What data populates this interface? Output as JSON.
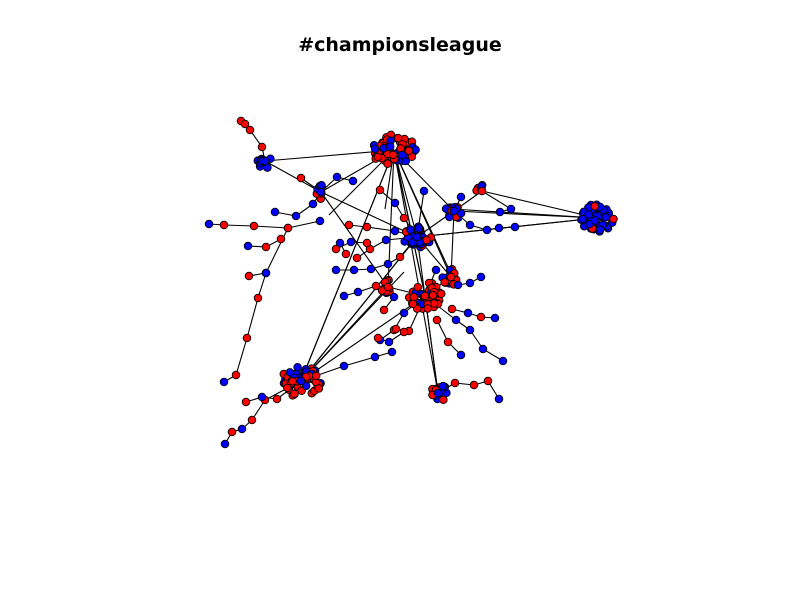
{
  "title": "#championsleague",
  "colors": {
    "background": "#ffffff",
    "group_a": "#ff0000",
    "group_b": "#0000ff",
    "edge": "#000000",
    "node_outline": "#000000"
  },
  "legend": "none",
  "axes": "hidden"
}
